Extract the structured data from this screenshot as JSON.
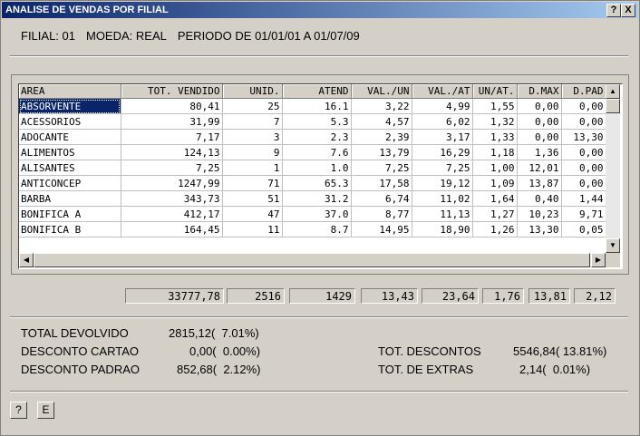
{
  "window": {
    "title": "ANALISE DE VENDAS POR FILIAL",
    "help_btn": "?",
    "close_btn": "X"
  },
  "info": {
    "filial": "FILIAL: 01",
    "moeda": "MOEDA: REAL",
    "periodo": "PERIODO DE 01/01/01 A 01/07/09"
  },
  "table": {
    "columns": [
      "AREA",
      "TOT. VENDIDO",
      "UNID.",
      "ATEND",
      "VAL./UN",
      "VAL./AT",
      "UN/AT.",
      "D.MAX",
      "D.PAD"
    ],
    "rows": [
      [
        "ABSORVENTE",
        "80,41",
        "25",
        "16.1",
        "3,22",
        "4,99",
        "1,55",
        "0,00",
        "0,00"
      ],
      [
        "ACESSORIOS",
        "31,99",
        "7",
        "5.3",
        "4,57",
        "6,02",
        "1,32",
        "0,00",
        "0,00"
      ],
      [
        "ADOCANTE",
        "7,17",
        "3",
        "2.3",
        "2,39",
        "3,17",
        "1,33",
        "0,00",
        "13,30"
      ],
      [
        "ALIMENTOS",
        "124,13",
        "9",
        "7.6",
        "13,79",
        "16,29",
        "1,18",
        "1,36",
        "0,00"
      ],
      [
        "ALISANTES",
        "7,25",
        "1",
        "1.0",
        "7,25",
        "7,25",
        "1,00",
        "12,01",
        "0,00"
      ],
      [
        "ANTICONCEP",
        "1247,99",
        "71",
        "65.3",
        "17,58",
        "19,12",
        "1,09",
        "13,87",
        "0,00"
      ],
      [
        "BARBA",
        "343,73",
        "51",
        "31.2",
        "6,74",
        "11,02",
        "1,64",
        "0,40",
        "1,44"
      ],
      [
        "BONIFICA A",
        "412,17",
        "47",
        "37.0",
        "8,77",
        "11,13",
        "1,27",
        "10,23",
        "9,71"
      ],
      [
        "BONIFICA B",
        "164,45",
        "11",
        "8.7",
        "14,95",
        "18,90",
        "1,26",
        "13,30",
        "0,05"
      ]
    ]
  },
  "totals": [
    "33777,78",
    "2516",
    "1429",
    "13,43",
    "23,64",
    "1,76",
    "13,81",
    "2,12"
  ],
  "summary": {
    "total_devolvido_label": "TOTAL DEVOLVIDO",
    "total_devolvido_value": "2815,12(  7.01%)",
    "desconto_cartao_label": "DESCONTO CARTAO",
    "desconto_cartao_value": "0,00(  0.00%)",
    "desconto_padrao_label": "DESCONTO PADRAO",
    "desconto_padrao_value": "852,68(  2.12%)",
    "tot_descontos_label": "TOT. DESCONTOS",
    "tot_descontos_value": "5546,84( 13.81%)",
    "tot_extras_label": "TOT. DE EXTRAS",
    "tot_extras_value": "2,14(  0.01%)"
  },
  "buttons": {
    "help": "?",
    "e": "E"
  }
}
